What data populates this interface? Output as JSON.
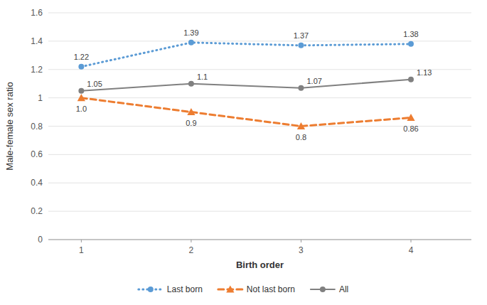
{
  "chart_data": {
    "type": "line",
    "x": [
      1,
      2,
      3,
      4
    ],
    "xlabel": "Birth order",
    "ylabel": "Male-female sex ratio",
    "xlim": [
      0.7,
      4.55
    ],
    "xticks": [
      1,
      2,
      3,
      4
    ],
    "ylim": [
      0,
      1.6
    ],
    "yticks": [
      0,
      0.2,
      0.4,
      0.6,
      0.8,
      1,
      1.2,
      1.4,
      1.6
    ],
    "grid": true,
    "legend": "bottom",
    "data_labels": true,
    "series": [
      {
        "name": "Last born",
        "color": "#5B9BD5",
        "marker": "circle",
        "line_style": "dotted",
        "values": [
          1.22,
          1.39,
          1.37,
          1.38
        ]
      },
      {
        "name": "Not last born",
        "color": "#ED7D31",
        "marker": "triangle",
        "line_style": "dashed",
        "values": [
          1.0,
          0.9,
          0.8,
          0.86
        ],
        "value_labels": [
          "1.0",
          "0.9",
          "0.8",
          "0.86"
        ]
      },
      {
        "name": "All",
        "color": "#808080",
        "marker": "circle",
        "line_style": "solid",
        "values": [
          1.05,
          1.1,
          1.07,
          1.13
        ]
      }
    ]
  }
}
